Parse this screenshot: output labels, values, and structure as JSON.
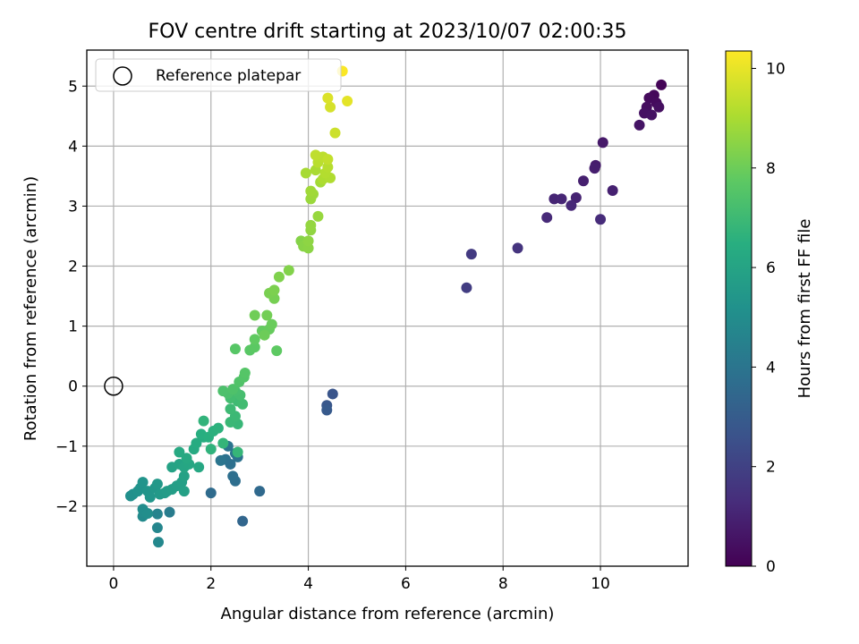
{
  "chart_data": {
    "type": "scatter",
    "title": "FOV centre drift starting at 2023/10/07 02:00:35",
    "xlabel": "Angular distance from reference (arcmin)",
    "ylabel": "Rotation from reference (arcmin)",
    "xlim": [
      -0.55,
      11.8
    ],
    "ylim": [
      -3.0,
      5.6
    ],
    "x_ticks": [
      0,
      2,
      4,
      6,
      8,
      10
    ],
    "y_ticks": [
      -2,
      -1,
      0,
      1,
      2,
      3,
      4,
      5
    ],
    "x_tick_labels": [
      "0",
      "2",
      "4",
      "6",
      "8",
      "10"
    ],
    "y_tick_labels": [
      "−2",
      "−1",
      "0",
      "1",
      "2",
      "3",
      "4",
      "5"
    ],
    "grid": true,
    "legend": {
      "position": "top-left",
      "entries": [
        "Reference platepar"
      ]
    },
    "reference_point": {
      "x": 0,
      "y": 0,
      "label": "Reference platepar"
    },
    "colorbar": {
      "label": "Hours from first FF file",
      "colormap": "viridis",
      "range": [
        0,
        10.35
      ],
      "ticks": [
        0,
        2,
        4,
        6,
        8,
        10
      ],
      "tick_labels": [
        "0",
        "2",
        "4",
        "6",
        "8",
        "10"
      ]
    },
    "points": [
      [
        11.25,
        5.02,
        0.1
      ],
      [
        11.1,
        4.85,
        0.2
      ],
      [
        11.0,
        4.8,
        0.25
      ],
      [
        11.15,
        4.72,
        0.3
      ],
      [
        10.95,
        4.65,
        0.35
      ],
      [
        11.2,
        4.65,
        0.4
      ],
      [
        10.9,
        4.55,
        0.45
      ],
      [
        11.05,
        4.52,
        0.5
      ],
      [
        10.8,
        4.35,
        0.55
      ],
      [
        10.05,
        4.06,
        0.7
      ],
      [
        9.9,
        3.68,
        0.8
      ],
      [
        9.88,
        3.63,
        0.85
      ],
      [
        9.65,
        3.42,
        0.9
      ],
      [
        10.25,
        3.26,
        0.95
      ],
      [
        9.5,
        3.14,
        1.0
      ],
      [
        9.05,
        3.12,
        1.05
      ],
      [
        9.2,
        3.12,
        1.1
      ],
      [
        9.4,
        3.01,
        1.15
      ],
      [
        8.9,
        2.81,
        1.2
      ],
      [
        10.0,
        2.78,
        1.25
      ],
      [
        8.3,
        2.3,
        1.55
      ],
      [
        7.35,
        2.2,
        1.75
      ],
      [
        7.25,
        1.64,
        1.85
      ],
      [
        4.5,
        -0.13,
        2.7
      ],
      [
        4.38,
        -0.32,
        2.8
      ],
      [
        4.38,
        -0.4,
        2.9
      ],
      [
        2.65,
        -2.25,
        3.4
      ],
      [
        3.0,
        -1.75,
        3.5
      ],
      [
        2.0,
        -1.78,
        3.6
      ],
      [
        2.5,
        -1.58,
        3.7
      ],
      [
        2.45,
        -1.5,
        3.75
      ],
      [
        2.4,
        -1.3,
        3.8
      ],
      [
        2.3,
        -1.22,
        3.85
      ],
      [
        2.55,
        -1.18,
        3.9
      ],
      [
        2.35,
        -1.0,
        3.95
      ],
      [
        2.2,
        -1.24,
        4.0
      ],
      [
        2.5,
        -1.12,
        4.05
      ],
      [
        1.15,
        -2.1,
        4.3
      ],
      [
        0.9,
        -2.13,
        4.6
      ],
      [
        0.9,
        -2.36,
        4.7
      ],
      [
        0.92,
        -2.6,
        4.8
      ],
      [
        0.6,
        -2.17,
        4.9
      ],
      [
        0.62,
        -2.1,
        4.95
      ],
      [
        0.6,
        -2.05,
        5.0
      ],
      [
        0.7,
        -2.12,
        5.05
      ],
      [
        0.35,
        -1.83,
        5.1
      ],
      [
        0.4,
        -1.8,
        5.15
      ],
      [
        0.5,
        -1.75,
        5.2
      ],
      [
        0.55,
        -1.7,
        5.25
      ],
      [
        0.6,
        -1.6,
        5.3
      ],
      [
        0.7,
        -1.75,
        5.35
      ],
      [
        0.75,
        -1.85,
        5.4
      ],
      [
        0.85,
        -1.7,
        5.45
      ],
      [
        0.9,
        -1.63,
        5.5
      ],
      [
        0.95,
        -1.8,
        5.55
      ],
      [
        1.05,
        -1.78,
        5.6
      ],
      [
        1.1,
        -1.75,
        5.65
      ],
      [
        1.2,
        -1.72,
        5.7
      ],
      [
        1.3,
        -1.66,
        5.75
      ],
      [
        1.4,
        -1.6,
        5.8
      ],
      [
        1.45,
        -1.75,
        5.85
      ],
      [
        1.45,
        -1.5,
        5.9
      ],
      [
        1.2,
        -1.35,
        5.95
      ],
      [
        1.35,
        -1.3,
        6.0
      ],
      [
        1.45,
        -1.35,
        6.05
      ],
      [
        1.55,
        -1.3,
        6.1
      ],
      [
        1.75,
        -1.35,
        6.15
      ],
      [
        1.5,
        -1.2,
        6.2
      ],
      [
        1.35,
        -1.1,
        6.25
      ],
      [
        1.65,
        -1.05,
        6.3
      ],
      [
        1.7,
        -0.95,
        6.35
      ],
      [
        1.85,
        -0.85,
        6.4
      ],
      [
        1.8,
        -0.8,
        6.45
      ],
      [
        1.95,
        -0.85,
        6.5
      ],
      [
        2.05,
        -0.75,
        6.55
      ],
      [
        2.15,
        -0.7,
        6.6
      ],
      [
        2.0,
        -1.05,
        6.65
      ],
      [
        1.85,
        -0.58,
        6.7
      ],
      [
        2.25,
        -0.95,
        6.75
      ],
      [
        2.55,
        -1.1,
        6.8
      ],
      [
        2.55,
        -0.63,
        6.85
      ],
      [
        2.4,
        -0.6,
        6.9
      ],
      [
        2.5,
        -0.5,
        6.95
      ],
      [
        2.4,
        -0.38,
        7.0
      ],
      [
        2.55,
        -0.25,
        7.05
      ],
      [
        2.65,
        -0.3,
        7.1
      ],
      [
        2.4,
        -0.2,
        7.15
      ],
      [
        2.6,
        -0.15,
        7.2
      ],
      [
        2.5,
        -0.08,
        7.25
      ],
      [
        2.35,
        -0.12,
        7.3
      ],
      [
        2.25,
        -0.08,
        7.35
      ],
      [
        2.45,
        -0.05,
        7.4
      ],
      [
        2.58,
        0.07,
        7.45
      ],
      [
        2.68,
        0.15,
        7.5
      ],
      [
        2.7,
        0.22,
        7.55
      ],
      [
        2.5,
        0.62,
        7.6
      ],
      [
        2.8,
        0.6,
        7.65
      ],
      [
        2.9,
        0.65,
        7.7
      ],
      [
        3.35,
        0.59,
        7.75
      ],
      [
        2.9,
        0.78,
        7.8
      ],
      [
        3.05,
        0.92,
        7.85
      ],
      [
        3.2,
        0.95,
        7.9
      ],
      [
        3.25,
        1.03,
        7.95
      ],
      [
        3.1,
        0.85,
        8.0
      ],
      [
        2.9,
        1.18,
        8.05
      ],
      [
        3.15,
        1.18,
        8.1
      ],
      [
        3.3,
        1.46,
        8.15
      ],
      [
        3.2,
        1.55,
        8.2
      ],
      [
        3.3,
        1.6,
        8.25
      ],
      [
        3.4,
        1.82,
        8.3
      ],
      [
        3.6,
        1.93,
        8.35
      ],
      [
        3.85,
        2.42,
        8.4
      ],
      [
        3.9,
        2.33,
        8.45
      ],
      [
        4.0,
        2.3,
        8.5
      ],
      [
        4.0,
        2.42,
        8.55
      ],
      [
        4.05,
        2.6,
        8.6
      ],
      [
        4.05,
        2.68,
        8.65
      ],
      [
        4.2,
        2.83,
        8.7
      ],
      [
        4.05,
        3.12,
        8.75
      ],
      [
        4.1,
        3.2,
        8.8
      ],
      [
        4.05,
        3.25,
        8.85
      ],
      [
        4.25,
        3.4,
        8.9
      ],
      [
        3.95,
        3.55,
        8.95
      ],
      [
        4.15,
        3.6,
        9.0
      ],
      [
        4.3,
        3.45,
        9.05
      ],
      [
        4.45,
        3.47,
        9.1
      ],
      [
        4.35,
        3.55,
        9.15
      ],
      [
        4.4,
        3.65,
        9.2
      ],
      [
        4.2,
        3.73,
        9.25
      ],
      [
        4.3,
        3.82,
        9.3
      ],
      [
        4.15,
        3.85,
        9.35
      ],
      [
        4.4,
        3.78,
        9.4
      ],
      [
        4.55,
        4.22,
        9.55
      ],
      [
        4.45,
        4.65,
        9.7
      ],
      [
        4.4,
        4.8,
        9.8
      ],
      [
        4.8,
        4.75,
        9.95
      ],
      [
        4.7,
        5.25,
        10.3
      ]
    ]
  }
}
